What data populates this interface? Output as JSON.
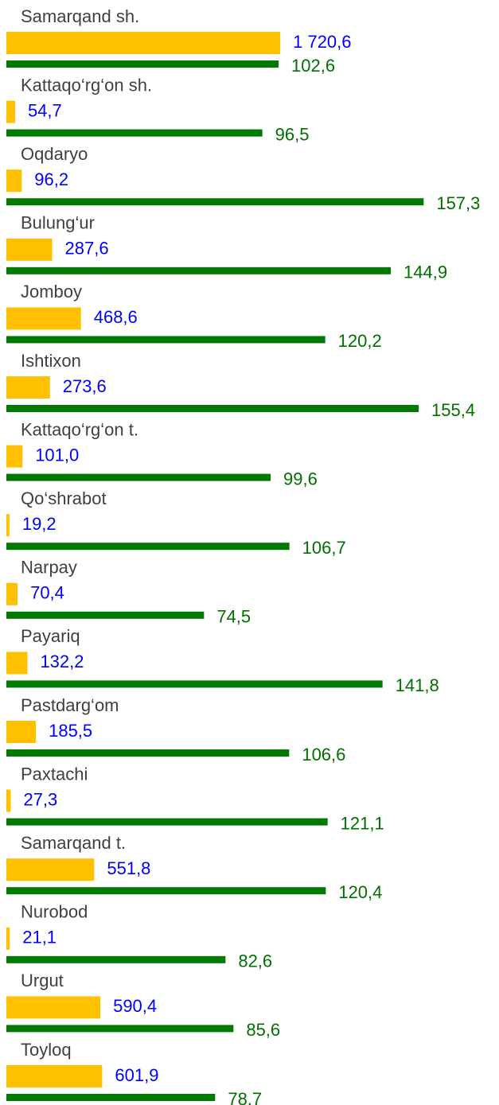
{
  "chart_data": {
    "type": "bar",
    "orientation": "horizontal",
    "categories": [
      "Samarqand sh.",
      "Kattaqo‘rg‘on sh.",
      "Oqdaryo",
      "Bulung‘ur",
      "Jomboy",
      "Ishtixon",
      "Kattaqo‘rg‘on t.",
      "Qo‘shrabot",
      "Narpay",
      "Payariq",
      "Pastdarg‘om",
      "Paxtachi",
      "Samarqand t.",
      "Nurobod",
      "Urgut",
      "Toyloq"
    ],
    "series": [
      {
        "color": "#ffc000",
        "label_color": "#0000ff",
        "xlim": [
          0,
          3000
        ],
        "values": [
          1720.6,
          54.7,
          96.2,
          287.6,
          468.6,
          273.6,
          101.0,
          19.2,
          70.4,
          132.2,
          185.5,
          27.3,
          551.8,
          21.1,
          590.4,
          601.9
        ],
        "value_labels": [
          "1 720,6",
          "54,7",
          "96,2",
          "287,6",
          "468,6",
          "273,6",
          "101,0",
          "19,2",
          "70,4",
          "132,2",
          "185,5",
          "27,3",
          "551,8",
          "21,1",
          "590,4",
          "601,9"
        ]
      },
      {
        "color": "#007a00",
        "label_color": "#007000",
        "xlim": [
          0,
          180
        ],
        "values": [
          102.6,
          96.5,
          157.3,
          144.9,
          120.2,
          155.4,
          99.6,
          106.7,
          74.5,
          141.8,
          106.6,
          121.1,
          120.4,
          82.6,
          85.6,
          78.7
        ],
        "value_labels": [
          "102,6",
          "96,5",
          "157,3",
          "144,9",
          "120,2",
          "155,4",
          "99,6",
          "106,7",
          "74,5",
          "141,8",
          "106,6",
          "121,1",
          "120,4",
          "82,6",
          "85,6",
          "78,7"
        ]
      }
    ]
  }
}
